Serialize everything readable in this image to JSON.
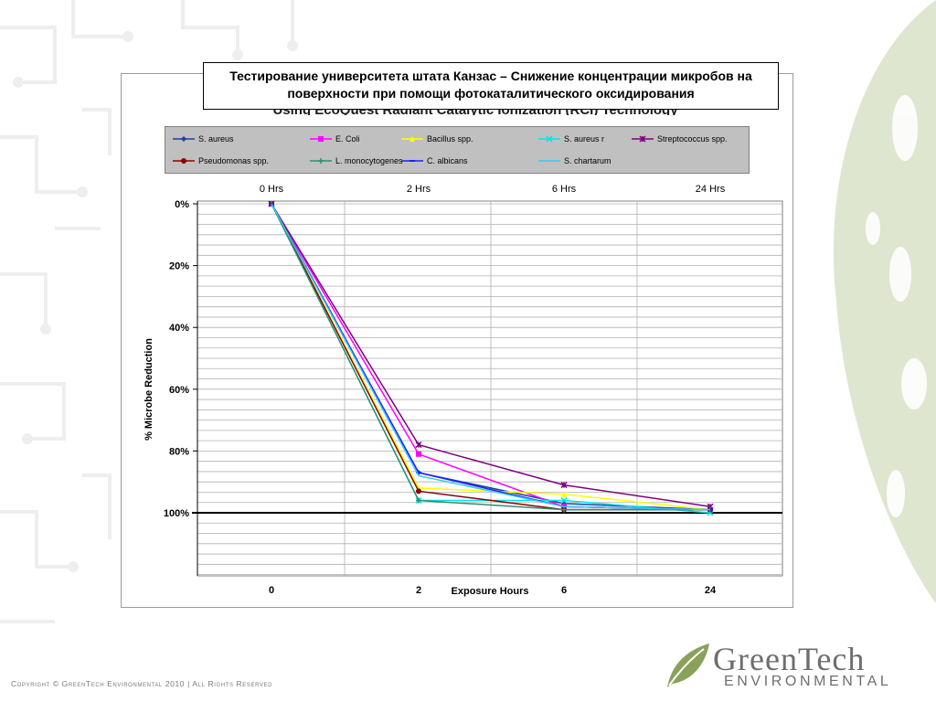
{
  "slide_title": "Тестирование университета штата Канзас – Снижение концентрации микробов на поверхности при помощи фотокаталитического оксидирования",
  "ghost_title": "Using EcoQuest Radiant Catalytic Ionization (RCI) Technology",
  "footer": {
    "copyright": "Copyright © GreenTech Environmental 2010 | All Rights Reserved"
  },
  "logo": {
    "word1": "GreenTech",
    "word2": "ENVIRONMENTAL"
  },
  "colors": {
    "accent_green": "#8aa15a",
    "text_gray": "#6e6e6e"
  },
  "chart_data": {
    "type": "line",
    "top_axis_labels": [
      "0 Hrs",
      "2 Hrs",
      "6 Hrs",
      "24 Hrs"
    ],
    "categories": [
      "0",
      "2",
      "6",
      "24"
    ],
    "xlabel": "Exposure Hours",
    "ylabel": "% Microbe Reduction",
    "y_ticks": [
      "0%",
      "20%",
      "40%",
      "60%",
      "80%",
      "100%"
    ],
    "ylim": [
      0,
      120
    ],
    "y_inverted": true,
    "grid": true,
    "legend_position": "top",
    "series": [
      {
        "name": "S. aureus",
        "color": "#1f3f9f",
        "marker": "diamond",
        "values": [
          0,
          87,
          97,
          99
        ]
      },
      {
        "name": "E. Coli",
        "color": "#ff00ff",
        "marker": "square",
        "values": [
          0,
          81,
          98,
          99
        ]
      },
      {
        "name": "Bacillus spp.",
        "color": "#ffff00",
        "marker": "triangle",
        "values": [
          0,
          92,
          94,
          99
        ]
      },
      {
        "name": "S. aureus r",
        "color": "#00e5e5",
        "marker": "x",
        "values": [
          0,
          96,
          96,
          100
        ]
      },
      {
        "name": "Streptococcus spp.",
        "color": "#800080",
        "marker": "star",
        "values": [
          0,
          78,
          91,
          98
        ]
      },
      {
        "name": "Pseudomonas spp.",
        "color": "#8b0000",
        "marker": "circle",
        "values": [
          0,
          93,
          99,
          99
        ]
      },
      {
        "name": "L. monocytogenes",
        "color": "#2f8f6f",
        "marker": "plus",
        "values": [
          0,
          96,
          99,
          99
        ]
      },
      {
        "name": "C. albicans",
        "color": "#1f1fff",
        "marker": "dash",
        "values": [
          0,
          87,
          98,
          99
        ]
      },
      {
        "name": "S. chartarum",
        "color": "#33ccee",
        "marker": "none",
        "values": [
          0,
          88,
          98,
          99
        ]
      }
    ]
  }
}
